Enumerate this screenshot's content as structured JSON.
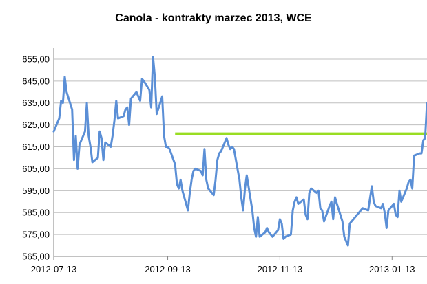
{
  "chart_data": {
    "type": "line",
    "title": "Canola - kontrakty marzec 2013, WCE",
    "xlabel": "",
    "ylabel": "",
    "ylim": [
      565,
      660
    ],
    "grid": "horizontal",
    "legend": "none",
    "y_ticks": [
      "565,00",
      "575,00",
      "585,00",
      "595,00",
      "605,00",
      "615,00",
      "625,00",
      "635,00",
      "645,00",
      "655,00"
    ],
    "y_tick_values": [
      565,
      575,
      585,
      595,
      605,
      615,
      625,
      635,
      645,
      655
    ],
    "x_ticks": [
      "2012-07-13",
      "2012-09-13",
      "2012-11-13",
      "2013-01-13"
    ],
    "x_tick_dates": [
      "2012-07-13",
      "2012-09-13",
      "2012-11-13",
      "2013-01-13"
    ],
    "x_range": [
      "2012-07-13",
      "2013-02-01"
    ],
    "colors": {
      "series": "#5b8fd6",
      "level": "#99dd22",
      "grid": "#bfbfbf"
    },
    "level_line": {
      "value": 621,
      "from": "2012-09-17",
      "to": "2013-02-01"
    },
    "series": [
      {
        "x": [
          "2012-07-13",
          "2012-07-16",
          "2012-07-17",
          "2012-07-18",
          "2012-07-19",
          "2012-07-20",
          "2012-07-23",
          "2012-07-24",
          "2012-07-25",
          "2012-07-26",
          "2012-07-27",
          "2012-07-30",
          "2012-07-31",
          "2012-08-01",
          "2012-08-02",
          "2012-08-03",
          "2012-08-06",
          "2012-08-07",
          "2012-08-08",
          "2012-08-09",
          "2012-08-10",
          "2012-08-13",
          "2012-08-14",
          "2012-08-15",
          "2012-08-16",
          "2012-08-17",
          "2012-08-20",
          "2012-08-21",
          "2012-08-22",
          "2012-08-23",
          "2012-08-24",
          "2012-08-27",
          "2012-08-28",
          "2012-08-29",
          "2012-08-30",
          "2012-08-31",
          "2012-09-03",
          "2012-09-04",
          "2012-09-05",
          "2012-09-06",
          "2012-09-07",
          "2012-09-10",
          "2012-09-11",
          "2012-09-12",
          "2012-09-13",
          "2012-09-14",
          "2012-09-17",
          "2012-09-18",
          "2012-09-19",
          "2012-09-20",
          "2012-09-21",
          "2012-09-24",
          "2012-09-25",
          "2012-09-26",
          "2012-09-27",
          "2012-09-28",
          "2012-10-01",
          "2012-10-02",
          "2012-10-03",
          "2012-10-04",
          "2012-10-05",
          "2012-10-08",
          "2012-10-09",
          "2012-10-10",
          "2012-10-11",
          "2012-10-12",
          "2012-10-15",
          "2012-10-16",
          "2012-10-17",
          "2012-10-18",
          "2012-10-19",
          "2012-10-22",
          "2012-10-23",
          "2012-10-24",
          "2012-10-25",
          "2012-10-26",
          "2012-10-29",
          "2012-10-30",
          "2012-10-31",
          "2012-11-01",
          "2012-11-02",
          "2012-11-05",
          "2012-11-06",
          "2012-11-07",
          "2012-11-08",
          "2012-11-09",
          "2012-11-12",
          "2012-11-13",
          "2012-11-14",
          "2012-11-15",
          "2012-11-16",
          "2012-11-19",
          "2012-11-20",
          "2012-11-21",
          "2012-11-22",
          "2012-11-23",
          "2012-11-26",
          "2012-11-27",
          "2012-11-28",
          "2012-11-29",
          "2012-11-30",
          "2012-12-03",
          "2012-12-04",
          "2012-12-05",
          "2012-12-06",
          "2012-12-07",
          "2012-12-10",
          "2012-12-11",
          "2012-12-12",
          "2012-12-13",
          "2012-12-14",
          "2012-12-17",
          "2012-12-18",
          "2012-12-19",
          "2012-12-20",
          "2012-12-21",
          "2012-12-24",
          "2012-12-27",
          "2012-12-28",
          "2012-12-31",
          "2013-01-02",
          "2013-01-03",
          "2013-01-04",
          "2013-01-07",
          "2013-01-08",
          "2013-01-09",
          "2013-01-10",
          "2013-01-11",
          "2013-01-14",
          "2013-01-15",
          "2013-01-16",
          "2013-01-17",
          "2013-01-18",
          "2013-01-21",
          "2013-01-22",
          "2013-01-23",
          "2013-01-24",
          "2013-01-25",
          "2013-01-28",
          "2013-01-29",
          "2013-01-30",
          "2013-01-31",
          "2013-02-01"
        ],
        "values": [
          622,
          628,
          636,
          635,
          647,
          640,
          632,
          609,
          620,
          605,
          616,
          622,
          635,
          620,
          615,
          608,
          610,
          622,
          619,
          609,
          617,
          615,
          620,
          627,
          636,
          628,
          629,
          632,
          633,
          625,
          637,
          640,
          638,
          636,
          646,
          645,
          641,
          633,
          656,
          647,
          630,
          638,
          620,
          615,
          615,
          614,
          607,
          598,
          596,
          600,
          595,
          586,
          594,
          600,
          604,
          605,
          604,
          602,
          614,
          600,
          596,
          593,
          600,
          609,
          612,
          613,
          619,
          616,
          614,
          615,
          614,
          600,
          592,
          586,
          596,
          602,
          586,
          578,
          574,
          583,
          574,
          576,
          578,
          576,
          575,
          574,
          577,
          582,
          580,
          573,
          574,
          575,
          586,
          590,
          592,
          589,
          591,
          584,
          582,
          594,
          596,
          594,
          595,
          587,
          586,
          581,
          588,
          590,
          582,
          592,
          589,
          581,
          574,
          572,
          570,
          580,
          583,
          586,
          587,
          586,
          597,
          590,
          588,
          587,
          589,
          585,
          578,
          586,
          589,
          584,
          583,
          595,
          590,
          596,
          599,
          600,
          596,
          611,
          612,
          612,
          618,
          619,
          635
        ]
      }
    ]
  }
}
